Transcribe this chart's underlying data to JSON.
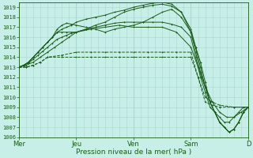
{
  "xlabel": "Pression niveau de la mer( hPa )",
  "bg_color": "#c8eee8",
  "grid_color": "#a8d8d0",
  "line_color": "#1a5c1a",
  "ylim": [
    1006,
    1019.5
  ],
  "yticks": [
    1006,
    1007,
    1008,
    1009,
    1010,
    1011,
    1012,
    1013,
    1014,
    1015,
    1016,
    1017,
    1018,
    1019
  ],
  "x_labels": [
    "Mer",
    "Jeu",
    "Ven",
    "Sam",
    "D"
  ],
  "x_positions": [
    0,
    24,
    48,
    72,
    96
  ],
  "series": [
    {
      "x": [
        0,
        3,
        6,
        9,
        12,
        18,
        24,
        30,
        36,
        42,
        48,
        54,
        60,
        66,
        72,
        75,
        78,
        81,
        84,
        90,
        96
      ],
      "y": [
        1013,
        1013,
        1013.2,
        1013.5,
        1014,
        1014,
        1014,
        1014,
        1014,
        1014,
        1014,
        1014,
        1014,
        1014,
        1014,
        1012,
        1009.5,
        1009.2,
        1009,
        1009,
        1009
      ],
      "dashed": true
    },
    {
      "x": [
        0,
        3,
        6,
        9,
        12,
        18,
        24,
        30,
        36,
        42,
        48,
        54,
        60,
        66,
        72,
        75,
        78,
        81,
        84,
        90,
        96
      ],
      "y": [
        1013,
        1013,
        1013.2,
        1013.5,
        1014,
        1014.2,
        1014.5,
        1014.5,
        1014.5,
        1014.5,
        1014.5,
        1014.5,
        1014.5,
        1014.5,
        1014.5,
        1012,
        1010,
        1009.5,
        1009.2,
        1009,
        1009
      ],
      "dashed": true
    },
    {
      "x": [
        0,
        3,
        6,
        9,
        12,
        15,
        18,
        21,
        24,
        30,
        36,
        42,
        48,
        54,
        60,
        66,
        72,
        75,
        78,
        81,
        84,
        87,
        90,
        93,
        96
      ],
      "y": [
        1013,
        1013.2,
        1013.5,
        1014,
        1014.5,
        1015,
        1015.5,
        1016,
        1016.5,
        1016.8,
        1017,
        1017.2,
        1017,
        1017,
        1017,
        1016.5,
        1015,
        1013,
        1011,
        1009.5,
        1008.5,
        1008,
        1008,
        1008.5,
        1009
      ],
      "dashed": false
    },
    {
      "x": [
        0,
        2,
        4,
        6,
        8,
        10,
        12,
        14,
        16,
        18,
        20,
        22,
        24,
        28,
        32,
        36,
        40,
        44,
        48,
        52,
        56,
        60,
        64,
        68,
        72,
        74,
        76,
        78,
        80,
        82,
        84,
        86,
        88,
        90,
        92,
        94,
        96
      ],
      "y": [
        1013,
        1013.2,
        1013.5,
        1014,
        1014.5,
        1015,
        1015.5,
        1016,
        1016.8,
        1017.2,
        1017.4,
        1017.3,
        1017.2,
        1017,
        1016.8,
        1016.5,
        1016.8,
        1017,
        1017.2,
        1017.5,
        1018,
        1018.5,
        1018.8,
        1018,
        1016.5,
        1015,
        1013,
        1011,
        1009.5,
        1008.5,
        1007.5,
        1007,
        1006.5,
        1006.8,
        1007.5,
        1008.5,
        1009
      ],
      "dashed": false
    },
    {
      "x": [
        0,
        2,
        4,
        6,
        8,
        10,
        12,
        14,
        16,
        18,
        20,
        22,
        24,
        28,
        32,
        36,
        40,
        44,
        48,
        52,
        56,
        60,
        64,
        68,
        72,
        74,
        76,
        78,
        80,
        82,
        84,
        86,
        88,
        90,
        92,
        94,
        96
      ],
      "y": [
        1013,
        1013.2,
        1013.4,
        1013.8,
        1014.2,
        1014.6,
        1015,
        1015.4,
        1015.8,
        1016,
        1016.2,
        1016.4,
        1016.5,
        1016.8,
        1017.2,
        1017.5,
        1018,
        1018.5,
        1018.8,
        1019,
        1019.2,
        1019.3,
        1019.1,
        1018.5,
        1016.8,
        1015,
        1013.5,
        1011.5,
        1009.5,
        1008.5,
        1007.5,
        1007,
        1006.5,
        1006.8,
        1007.5,
        1008.5,
        1009
      ],
      "dashed": false
    },
    {
      "x": [
        0,
        2,
        4,
        6,
        8,
        10,
        12,
        14,
        16,
        18,
        20,
        22,
        24,
        28,
        32,
        36,
        40,
        44,
        48,
        52,
        56,
        60,
        64,
        68,
        72,
        74,
        76,
        78,
        80,
        82,
        84,
        86,
        88,
        90,
        92,
        94,
        96
      ],
      "y": [
        1013,
        1013.2,
        1013.5,
        1014,
        1014.5,
        1015,
        1015.5,
        1016,
        1016.5,
        1016.8,
        1017,
        1017.2,
        1017.5,
        1017.8,
        1018,
        1018.2,
        1018.5,
        1018.7,
        1019,
        1019.2,
        1019.4,
        1019.5,
        1019.3,
        1018.5,
        1016.5,
        1014.5,
        1012.5,
        1011,
        1009.5,
        1008.5,
        1007.5,
        1007,
        1006.5,
        1006.8,
        1007.5,
        1008.5,
        1009
      ],
      "dashed": false
    },
    {
      "x": [
        0,
        2,
        4,
        6,
        8,
        10,
        12,
        14,
        16,
        18,
        20,
        22,
        24,
        28,
        32,
        36,
        40,
        44,
        48,
        52,
        56,
        60,
        64,
        68,
        72,
        74,
        76,
        78,
        80,
        82,
        84,
        86,
        88,
        90,
        92,
        94,
        96
      ],
      "y": [
        1013,
        1013.2,
        1013.5,
        1014,
        1014.5,
        1015,
        1015.5,
        1016,
        1016.5,
        1016.5,
        1016.5,
        1016.5,
        1016.5,
        1016.8,
        1017,
        1017.2,
        1017.4,
        1017.5,
        1017.5,
        1017.5,
        1017.5,
        1017.5,
        1017.3,
        1017,
        1016,
        1014,
        1012,
        1010.5,
        1009,
        1008.5,
        1008,
        1007.5,
        1007.5,
        1008,
        1008.5,
        1009,
        1009
      ],
      "dashed": false
    }
  ]
}
